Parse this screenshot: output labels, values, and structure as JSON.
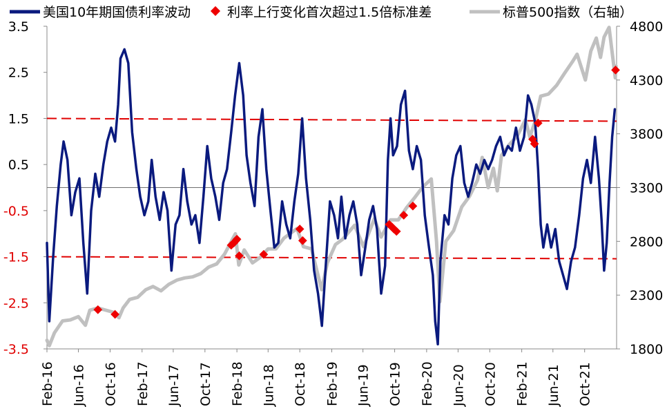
{
  "chart_data": {
    "type": "line",
    "legend": {
      "placement": "top",
      "items": [
        {
          "label": "美国10年期国债利率波动",
          "color": "#0a1a7e",
          "kind": "line"
        },
        {
          "label": "利率上行变化首次超过1.5倍标准差",
          "color": "#ee0000",
          "kind": "diamond"
        },
        {
          "label": "标普500指数（右轴）",
          "color": "#c0c0c0",
          "kind": "line"
        }
      ]
    },
    "x_tick_labels": [
      "Feb-16",
      "Jun-16",
      "Oct-16",
      "Feb-17",
      "Jun-17",
      "Oct-17",
      "Feb-18",
      "Jun-18",
      "Oct-18",
      "Feb-19",
      "Jun-19",
      "Oct-19",
      "Feb-20",
      "Jun-20",
      "Oct-20",
      "Feb-21",
      "Jun-21",
      "Oct-21"
    ],
    "x_range": [
      "2016-02-01",
      "2022-02-01"
    ],
    "y_left": {
      "range": [
        -3.5,
        3.5
      ],
      "ticks": [
        "3.5",
        "2.5",
        "1.5",
        "0.5",
        "-0.5",
        "-1.5",
        "-2.5",
        "-3.5"
      ]
    },
    "y_right": {
      "range": [
        1800,
        4800
      ],
      "ticks": [
        "4800",
        "4300",
        "3800",
        "3300",
        "2800",
        "2300",
        "1800"
      ]
    },
    "threshold_lines": [
      1.5,
      -1.5
    ],
    "zero_line": 0,
    "series": [
      {
        "name": "美国10年期国债利率波动",
        "axis": "left",
        "color": "#0a1a7e",
        "points": [
          [
            "2016-02-01",
            -1.2
          ],
          [
            "2016-02-10",
            -2.9
          ],
          [
            "2016-02-25",
            -1.5
          ],
          [
            "2016-03-10",
            -0.4
          ],
          [
            "2016-03-25",
            0.5
          ],
          [
            "2016-04-05",
            1.0
          ],
          [
            "2016-04-20",
            0.6
          ],
          [
            "2016-05-05",
            -0.6
          ],
          [
            "2016-05-20",
            -0.1
          ],
          [
            "2016-06-05",
            0.2
          ],
          [
            "2016-06-20",
            -1.2
          ],
          [
            "2016-07-05",
            -2.3
          ],
          [
            "2016-07-20",
            -0.5
          ],
          [
            "2016-08-05",
            0.3
          ],
          [
            "2016-08-20",
            -0.2
          ],
          [
            "2016-09-05",
            0.5
          ],
          [
            "2016-09-20",
            1.0
          ],
          [
            "2016-10-05",
            1.3
          ],
          [
            "2016-10-20",
            1.0
          ],
          [
            "2016-11-01",
            1.8
          ],
          [
            "2016-11-10",
            2.8
          ],
          [
            "2016-11-25",
            3.0
          ],
          [
            "2016-12-10",
            2.7
          ],
          [
            "2016-12-25",
            1.2
          ],
          [
            "2017-01-10",
            0.4
          ],
          [
            "2017-01-25",
            -0.2
          ],
          [
            "2017-02-10",
            -0.6
          ],
          [
            "2017-02-25",
            -0.3
          ],
          [
            "2017-03-10",
            0.6
          ],
          [
            "2017-03-25",
            -0.2
          ],
          [
            "2017-04-10",
            -0.7
          ],
          [
            "2017-04-25",
            -0.1
          ],
          [
            "2017-05-10",
            -0.5
          ],
          [
            "2017-05-25",
            -1.8
          ],
          [
            "2017-06-10",
            -0.8
          ],
          [
            "2017-06-25",
            -0.6
          ],
          [
            "2017-07-10",
            0.4
          ],
          [
            "2017-07-25",
            -0.3
          ],
          [
            "2017-08-10",
            -0.8
          ],
          [
            "2017-08-25",
            -0.6
          ],
          [
            "2017-09-10",
            -1.2
          ],
          [
            "2017-09-25",
            -0.2
          ],
          [
            "2017-10-10",
            0.9
          ],
          [
            "2017-10-25",
            0.2
          ],
          [
            "2017-11-10",
            -0.2
          ],
          [
            "2017-11-25",
            -0.7
          ],
          [
            "2017-12-10",
            0.1
          ],
          [
            "2017-12-25",
            0.4
          ],
          [
            "2018-01-10",
            1.2
          ],
          [
            "2018-01-25",
            2.0
          ],
          [
            "2018-02-10",
            2.7
          ],
          [
            "2018-02-25",
            2.0
          ],
          [
            "2018-03-10",
            0.7
          ],
          [
            "2018-03-25",
            0.1
          ],
          [
            "2018-04-10",
            -0.4
          ],
          [
            "2018-04-25",
            1.1
          ],
          [
            "2018-05-10",
            1.7
          ],
          [
            "2018-05-25",
            0.4
          ],
          [
            "2018-06-10",
            -0.5
          ],
          [
            "2018-06-25",
            -1.3
          ],
          [
            "2018-07-10",
            -1.2
          ],
          [
            "2018-07-25",
            -0.3
          ],
          [
            "2018-08-10",
            -0.8
          ],
          [
            "2018-08-25",
            -1.1
          ],
          [
            "2018-09-10",
            -0.3
          ],
          [
            "2018-09-25",
            0.3
          ],
          [
            "2018-10-10",
            1.5
          ],
          [
            "2018-10-25",
            0.2
          ],
          [
            "2018-11-10",
            -0.7
          ],
          [
            "2018-11-25",
            -1.8
          ],
          [
            "2018-12-10",
            -2.3
          ],
          [
            "2018-12-25",
            -3.0
          ],
          [
            "2019-01-10",
            -1.6
          ],
          [
            "2019-01-25",
            -0.3
          ],
          [
            "2019-02-10",
            -0.6
          ],
          [
            "2019-02-25",
            -1.1
          ],
          [
            "2019-03-10",
            -0.2
          ],
          [
            "2019-03-25",
            -1.1
          ],
          [
            "2019-04-10",
            -0.6
          ],
          [
            "2019-04-25",
            -0.3
          ],
          [
            "2019-05-10",
            -0.8
          ],
          [
            "2019-05-25",
            -1.9
          ],
          [
            "2019-06-10",
            -1.3
          ],
          [
            "2019-06-25",
            -0.7
          ],
          [
            "2019-07-10",
            -0.4
          ],
          [
            "2019-07-25",
            -0.9
          ],
          [
            "2019-08-10",
            -2.3
          ],
          [
            "2019-08-25",
            -1.7
          ],
          [
            "2019-09-05",
            0.6
          ],
          [
            "2019-09-15",
            1.5
          ],
          [
            "2019-09-25",
            0.7
          ],
          [
            "2019-10-10",
            0.9
          ],
          [
            "2019-10-25",
            1.8
          ],
          [
            "2019-11-10",
            2.1
          ],
          [
            "2019-11-25",
            0.8
          ],
          [
            "2019-12-10",
            0.4
          ],
          [
            "2019-12-25",
            0.9
          ],
          [
            "2020-01-10",
            0.6
          ],
          [
            "2020-01-25",
            -0.6
          ],
          [
            "2020-02-10",
            -1.3
          ],
          [
            "2020-02-25",
            -1.9
          ],
          [
            "2020-03-05",
            -2.9
          ],
          [
            "2020-03-15",
            -3.4
          ],
          [
            "2020-03-25",
            -1.6
          ],
          [
            "2020-04-10",
            -0.6
          ],
          [
            "2020-04-25",
            -0.8
          ],
          [
            "2020-05-10",
            0.2
          ],
          [
            "2020-05-25",
            0.7
          ],
          [
            "2020-06-10",
            0.9
          ],
          [
            "2020-06-25",
            0.1
          ],
          [
            "2020-07-10",
            -0.2
          ],
          [
            "2020-07-25",
            0.1
          ],
          [
            "2020-08-10",
            0.5
          ],
          [
            "2020-08-25",
            0.3
          ],
          [
            "2020-09-10",
            0.6
          ],
          [
            "2020-09-25",
            0.4
          ],
          [
            "2020-10-10",
            0.6
          ],
          [
            "2020-10-25",
            0.9
          ],
          [
            "2020-11-10",
            1.1
          ],
          [
            "2020-11-25",
            0.7
          ],
          [
            "2020-12-10",
            0.9
          ],
          [
            "2020-12-25",
            0.8
          ],
          [
            "2021-01-10",
            1.3
          ],
          [
            "2021-01-25",
            0.8
          ],
          [
            "2021-02-10",
            1.1
          ],
          [
            "2021-02-25",
            2.0
          ],
          [
            "2021-03-10",
            1.8
          ],
          [
            "2021-03-25",
            1.4
          ],
          [
            "2021-04-05",
            0.4
          ],
          [
            "2021-04-15",
            -0.8
          ],
          [
            "2021-04-25",
            -1.3
          ],
          [
            "2021-05-10",
            -0.8
          ],
          [
            "2021-05-25",
            -1.3
          ],
          [
            "2021-06-10",
            -0.9
          ],
          [
            "2021-06-25",
            -1.6
          ],
          [
            "2021-07-10",
            -1.9
          ],
          [
            "2021-07-25",
            -2.2
          ],
          [
            "2021-08-10",
            -1.6
          ],
          [
            "2021-08-25",
            -1.3
          ],
          [
            "2021-09-10",
            -0.6
          ],
          [
            "2021-09-25",
            0.2
          ],
          [
            "2021-10-10",
            0.6
          ],
          [
            "2021-10-25",
            0.1
          ],
          [
            "2021-11-10",
            1.1
          ],
          [
            "2021-11-25",
            0.2
          ],
          [
            "2021-12-05",
            -0.7
          ],
          [
            "2021-12-15",
            -1.8
          ],
          [
            "2021-12-25",
            -1.2
          ],
          [
            "2022-01-05",
            0.1
          ],
          [
            "2022-01-15",
            1.1
          ],
          [
            "2022-01-25",
            1.7
          ]
        ]
      },
      {
        "name": "标普500指数（右轴）",
        "axis": "right",
        "color": "#c0c0c0",
        "points": [
          [
            "2016-02-01",
            1880
          ],
          [
            "2016-02-10",
            1830
          ],
          [
            "2016-03-01",
            1950
          ],
          [
            "2016-04-01",
            2060
          ],
          [
            "2016-05-01",
            2070
          ],
          [
            "2016-06-01",
            2100
          ],
          [
            "2016-06-28",
            2020
          ],
          [
            "2016-07-15",
            2160
          ],
          [
            "2016-08-15",
            2180
          ],
          [
            "2016-09-15",
            2160
          ],
          [
            "2016-10-15",
            2140
          ],
          [
            "2016-11-04",
            2090
          ],
          [
            "2016-11-20",
            2180
          ],
          [
            "2016-12-15",
            2260
          ],
          [
            "2017-01-15",
            2280
          ],
          [
            "2017-02-15",
            2350
          ],
          [
            "2017-03-15",
            2380
          ],
          [
            "2017-04-15",
            2340
          ],
          [
            "2017-05-15",
            2400
          ],
          [
            "2017-06-15",
            2440
          ],
          [
            "2017-07-15",
            2460
          ],
          [
            "2017-08-15",
            2470
          ],
          [
            "2017-09-15",
            2500
          ],
          [
            "2017-10-15",
            2560
          ],
          [
            "2017-11-15",
            2590
          ],
          [
            "2017-12-15",
            2680
          ],
          [
            "2018-01-26",
            2870
          ],
          [
            "2018-02-08",
            2580
          ],
          [
            "2018-03-01",
            2720
          ],
          [
            "2018-04-02",
            2600
          ],
          [
            "2018-05-01",
            2650
          ],
          [
            "2018-06-01",
            2730
          ],
          [
            "2018-07-01",
            2730
          ],
          [
            "2018-08-01",
            2830
          ],
          [
            "2018-09-20",
            2920
          ],
          [
            "2018-10-15",
            2750
          ],
          [
            "2018-11-15",
            2730
          ],
          [
            "2018-12-24",
            2350
          ],
          [
            "2019-01-15",
            2600
          ],
          [
            "2019-02-15",
            2770
          ],
          [
            "2019-03-15",
            2820
          ],
          [
            "2019-04-30",
            2950
          ],
          [
            "2019-06-03",
            2750
          ],
          [
            "2019-07-15",
            3010
          ],
          [
            "2019-08-10",
            2840
          ],
          [
            "2019-09-15",
            3000
          ],
          [
            "2019-10-15",
            3000
          ],
          [
            "2019-11-15",
            3110
          ],
          [
            "2019-12-15",
            3200
          ],
          [
            "2020-01-15",
            3300
          ],
          [
            "2020-02-19",
            3380
          ],
          [
            "2020-03-10",
            2800
          ],
          [
            "2020-03-23",
            2240
          ],
          [
            "2020-04-15",
            2800
          ],
          [
            "2020-05-15",
            2900
          ],
          [
            "2020-06-15",
            3120
          ],
          [
            "2020-07-15",
            3220
          ],
          [
            "2020-08-15",
            3370
          ],
          [
            "2020-09-02",
            3580
          ],
          [
            "2020-09-25",
            3300
          ],
          [
            "2020-10-15",
            3480
          ],
          [
            "2020-10-30",
            3270
          ],
          [
            "2020-11-15",
            3600
          ],
          [
            "2020-12-15",
            3700
          ],
          [
            "2021-01-15",
            3780
          ],
          [
            "2021-02-15",
            3930
          ],
          [
            "2021-03-04",
            3770
          ],
          [
            "2021-03-25",
            3920
          ],
          [
            "2021-04-15",
            4150
          ],
          [
            "2021-05-15",
            4170
          ],
          [
            "2021-06-15",
            4250
          ],
          [
            "2021-07-15",
            4360
          ],
          [
            "2021-08-15",
            4470
          ],
          [
            "2021-09-02",
            4540
          ],
          [
            "2021-10-04",
            4300
          ],
          [
            "2021-10-25",
            4570
          ],
          [
            "2021-11-15",
            4690
          ],
          [
            "2021-12-01",
            4510
          ],
          [
            "2021-12-15",
            4700
          ],
          [
            "2022-01-03",
            4790
          ],
          [
            "2022-01-27",
            4320
          ],
          [
            "2022-01-30",
            4430
          ]
        ]
      },
      {
        "name": "利率上行变化首次超过1.5倍标准差",
        "axis": "left",
        "color": "#ee0000",
        "markers": [
          [
            "2016-08-15",
            -2.65
          ],
          [
            "2016-10-20",
            -2.75
          ],
          [
            "2018-01-10",
            -1.25
          ],
          [
            "2018-01-20",
            -1.2
          ],
          [
            "2018-01-28",
            -1.15
          ],
          [
            "2018-02-01",
            -1.12
          ],
          [
            "2018-02-10",
            -1.48
          ],
          [
            "2018-05-15",
            -1.45
          ],
          [
            "2018-10-01",
            -0.9
          ],
          [
            "2018-10-12",
            -1.15
          ],
          [
            "2019-09-10",
            -0.8
          ],
          [
            "2019-09-20",
            -0.85
          ],
          [
            "2019-09-28",
            -0.9
          ],
          [
            "2019-10-08",
            -0.95
          ],
          [
            "2019-11-05",
            -0.6
          ],
          [
            "2019-12-10",
            -0.4
          ],
          [
            "2021-03-15",
            1.05
          ],
          [
            "2021-03-22",
            0.95
          ],
          [
            "2021-04-05",
            1.4
          ],
          [
            "2022-01-28",
            2.55
          ]
        ]
      }
    ]
  }
}
